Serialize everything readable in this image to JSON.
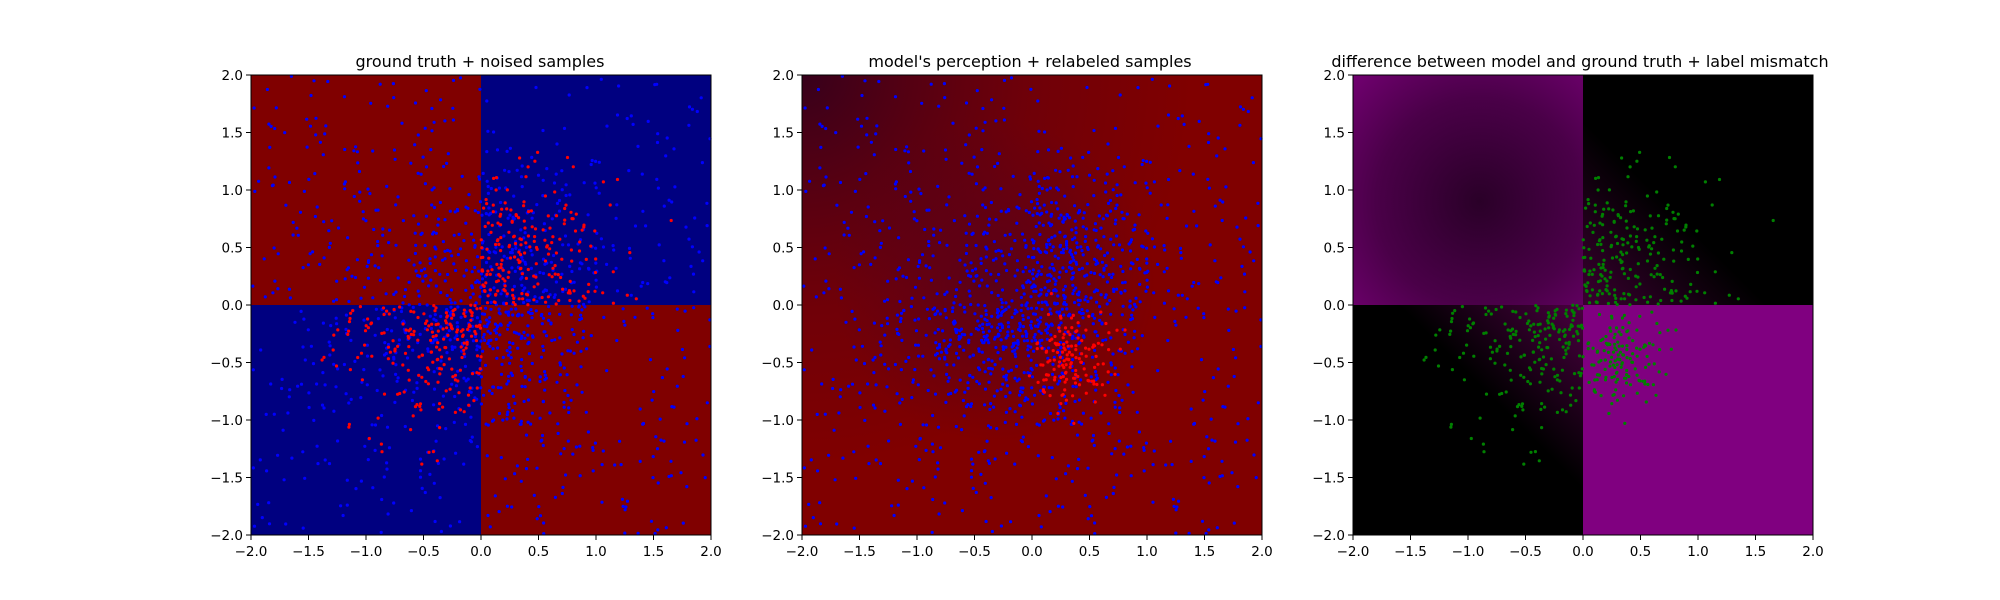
{
  "figure": {
    "background": "#ffffff"
  },
  "colors": {
    "class_a_region": "#800000",
    "class_b_region": "#000080",
    "diff_high": "#800080",
    "diff_low": "#000000",
    "point_red": "#ff0000",
    "point_blue": "#0000ff",
    "point_green": "#008000"
  },
  "chart_data": [
    {
      "type": "scatter",
      "title": "ground truth + noised samples",
      "xlabel": "",
      "ylabel": "",
      "xlim": [
        -2.0,
        2.0
      ],
      "ylim": [
        -2.0,
        2.0
      ],
      "xticks": [
        "−2.0",
        "−1.5",
        "−1.0",
        "−0.5",
        "0.0",
        "0.5",
        "1.0",
        "1.5",
        "2.0"
      ],
      "yticks": [
        "−2.0",
        "−1.5",
        "−1.0",
        "−0.5",
        "0.0",
        "0.5",
        "1.0",
        "1.5",
        "2.0"
      ],
      "background": "quadrant map: dark red where x*y<0, dark blue where x*y>0",
      "grid": false,
      "series": [
        {
          "color": "point_red",
          "cluster": "dense in quadrants x>0,y>0 and x<0,y<0 (about |x|,|y| < 1.2)"
        },
        {
          "color": "point_blue",
          "cluster": "widely spread over the whole square, denser near the center"
        }
      ]
    },
    {
      "type": "scatter",
      "title": "model's perception + relabeled samples",
      "xlabel": "",
      "ylabel": "",
      "xlim": [
        -2.0,
        2.0
      ],
      "ylim": [
        -2.0,
        2.0
      ],
      "xticks": [
        "−2.0",
        "−1.5",
        "−1.0",
        "−0.5",
        "0.0",
        "0.5",
        "1.0",
        "1.5",
        "2.0"
      ],
      "yticks": [
        "−2.0",
        "−1.5",
        "−1.0",
        "−0.5",
        "0.0",
        "0.5",
        "1.0",
        "1.5",
        "2.0"
      ],
      "background": "mostly dark red, darker toward the upper-left corner",
      "grid": false,
      "series": [
        {
          "color": "point_blue",
          "cluster": "dense around the center (about radius 1.2), sparse elsewhere"
        },
        {
          "color": "point_red",
          "cluster": "small cluster near x 0.0 to 0.7, y -0.9 to -0.1"
        }
      ]
    },
    {
      "type": "scatter",
      "title": "difference between model and ground truth + label mismatch",
      "xlabel": "",
      "ylabel": "",
      "xlim": [
        -2.0,
        2.0
      ],
      "ylim": [
        -2.0,
        2.0
      ],
      "xticks": [
        "−2.0",
        "−1.5",
        "−1.0",
        "−0.5",
        "0.0",
        "0.5",
        "1.0",
        "1.5",
        "2.0"
      ],
      "yticks": [
        "−2.0",
        "−1.5",
        "−1.0",
        "−0.5",
        "0.0",
        "0.5",
        "1.0",
        "1.5",
        "2.0"
      ],
      "background": "purple in quadrants x<0,y>0 and x>0,y<0, black elsewhere with faint purple near the axes",
      "grid": false,
      "series": [
        {
          "color": "point_green",
          "cluster": "in quadrants x>0,y>0 and x<0,y<0 plus a cluster near x 0 to 0.7, y -0.9 to 0"
        }
      ]
    }
  ]
}
